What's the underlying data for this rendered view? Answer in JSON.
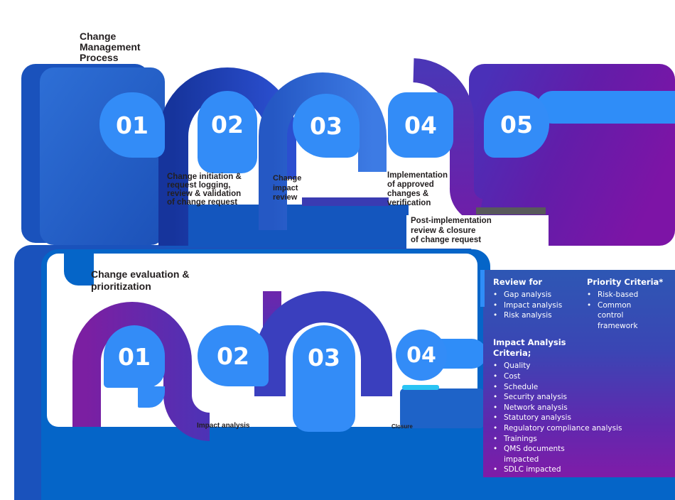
{
  "colors": {
    "bubble_blue": "#338CF7",
    "royal_blue": "#2443BF",
    "navy_blue": "#16349C",
    "medium_blue": "#1456BE",
    "sky_band": "#2F8DF8",
    "footer_blue": "#0565C8",
    "footer_dark_blue": "#1A52BC",
    "indigo": "#3A3FBE",
    "ribbon_purple": "#7B1FA2",
    "panel_indigo": "#4A30B8",
    "panel_purple": "#7D14A6",
    "cyan": "#2AC4F4",
    "gray_bar": "#58595B",
    "dark_text": "#231F20"
  },
  "top_row": {
    "title_lines": [
      "Change",
      "Management",
      "Process"
    ],
    "steps": [
      {
        "number": "01"
      },
      {
        "number": "02"
      },
      {
        "number": "03"
      },
      {
        "number": "04"
      },
      {
        "number": "05"
      }
    ],
    "label_steps_1_2_lines": [
      "Change initiation &",
      "request logging,",
      "review & validation",
      "of change request"
    ],
    "label_step_3_lines": [
      "Change",
      "impact",
      "review"
    ],
    "label_step_4_lines": [
      "Implementation",
      "of approved",
      "changes &",
      "verification"
    ],
    "label_step_5_lines": [
      "Post-implementation",
      "review & closure",
      "of change request"
    ]
  },
  "bottom_row": {
    "title_lines": [
      "Change evaluation &",
      "prioritization"
    ],
    "steps": [
      {
        "number": "01"
      },
      {
        "number": "02"
      },
      {
        "number": "03"
      },
      {
        "number": "04"
      }
    ],
    "label_step_2": "Impact analysis",
    "label_step_4": "Closure"
  },
  "side_panel": {
    "bullet": "•",
    "review": {
      "title": "Review for",
      "items": [
        "Gap analysis",
        "Impact analysis",
        "Risk analysis"
      ]
    },
    "priority": {
      "title": "Priority Criteria*",
      "items": [
        "Risk-based",
        "Common\ncontrol\nframework"
      ]
    },
    "impact": {
      "title": "Impact Analysis\nCriteria;",
      "items": [
        "Quality",
        "Cost",
        "Schedule",
        "Security analysis",
        "Network analysis",
        "Statutory analysis",
        "Regulatory compliance analysis",
        "Trainings",
        "QMS documents\nimpacted",
        "SDLC impacted"
      ]
    }
  }
}
